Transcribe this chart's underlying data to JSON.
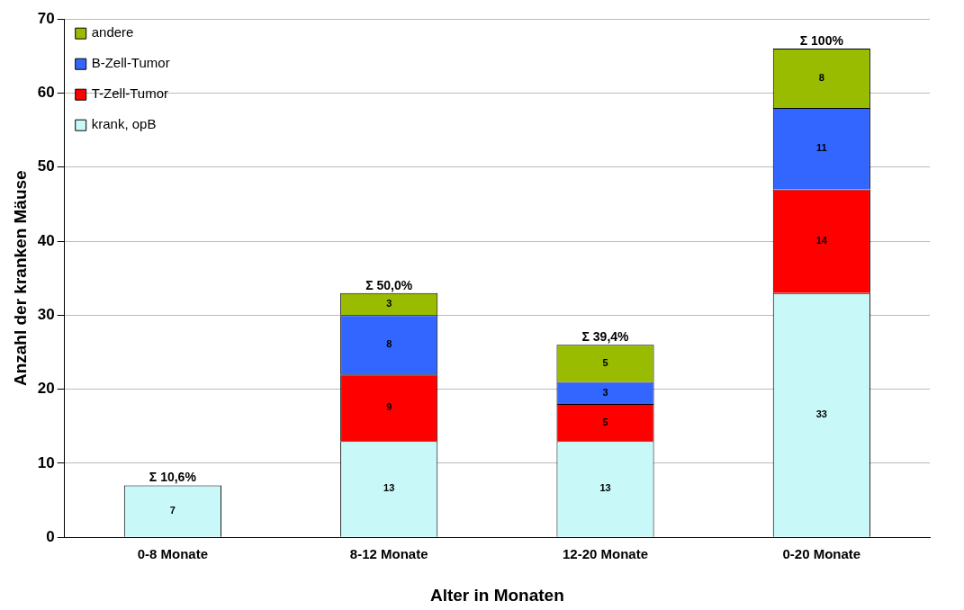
{
  "chart_data": {
    "type": "bar",
    "stacked": true,
    "xlabel": "Alter in Monaten",
    "ylabel": "Anzahl der kranken Mäuse",
    "categories": [
      "0-8 Monate",
      "8-12 Monate",
      "12-20 Monate",
      "0-20 Monate"
    ],
    "series": [
      {
        "name": "krank, opB",
        "color": "#c8f8f8",
        "values": [
          7,
          13,
          13,
          33
        ]
      },
      {
        "name": "T-Zell-Tumor",
        "color": "#ff0000",
        "values": [
          null,
          9,
          5,
          14
        ]
      },
      {
        "name": "B-Zell-Tumor",
        "color": "#3366ff",
        "values": [
          null,
          8,
          3,
          11
        ]
      },
      {
        "name": "andere",
        "color": "#99bb00",
        "values": [
          null,
          3,
          5,
          8
        ]
      }
    ],
    "totals": [
      "Σ 10,6%",
      "Σ 50,0%",
      "Σ 39,4%",
      "Σ 100%"
    ],
    "ylim": [
      0,
      70
    ],
    "yticks": [
      0,
      10,
      20,
      30,
      40,
      50,
      60,
      70
    ],
    "grid": "y",
    "legend": "top left",
    "data_labels": true
  }
}
